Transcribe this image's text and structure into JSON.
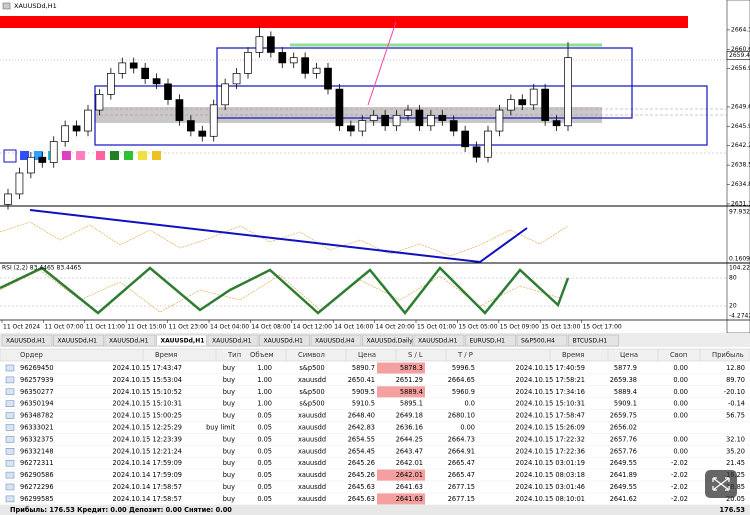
{
  "chart": {
    "title": "XAUUSDd,H1",
    "price_range": [
      2630.7,
      2670.0
    ],
    "price_ticks": [
      2664.3,
      2660.6,
      2656.9,
      2649.6,
      2645.9,
      2642.2,
      2638.5,
      2634.8,
      2631.1
    ],
    "price_tick_labels": [
      "2664.30",
      "2660.60",
      "2656.90",
      "2649.60",
      "2645.90",
      "2642.20",
      "2638.50",
      "2634.80",
      "2631.10"
    ],
    "current_price": {
      "value": 2659.44,
      "label": "2659.44"
    },
    "candles": [
      [
        2631,
        2634,
        2630,
        2633
      ],
      [
        2633,
        2638,
        2632,
        2637
      ],
      [
        2637,
        2641,
        2636,
        2640
      ],
      [
        2640,
        2641,
        2638,
        2639
      ],
      [
        2639,
        2644,
        2638,
        2643
      ],
      [
        2643,
        2647,
        2642,
        2646
      ],
      [
        2646,
        2647,
        2644,
        2645
      ],
      [
        2645,
        2650,
        2644,
        2649
      ],
      [
        2649,
        2653,
        2648,
        2652
      ],
      [
        2652,
        2657,
        2651,
        2656
      ],
      [
        2656,
        2659,
        2655,
        2658
      ],
      [
        2658,
        2659,
        2656,
        2657
      ],
      [
        2657,
        2658,
        2654,
        2655
      ],
      [
        2655,
        2656,
        2653,
        2654
      ],
      [
        2654,
        2655,
        2650,
        2651
      ],
      [
        2651,
        2652,
        2646,
        2647
      ],
      [
        2647,
        2648,
        2644,
        2645
      ],
      [
        2645,
        2646,
        2643,
        2644
      ],
      [
        2644,
        2651,
        2643,
        2650
      ],
      [
        2650,
        2655,
        2649,
        2654
      ],
      [
        2654,
        2657,
        2653,
        2656
      ],
      [
        2656,
        2661,
        2655,
        2660
      ],
      [
        2660,
        2665,
        2659,
        2663
      ],
      [
        2663,
        2664,
        2659,
        2660
      ],
      [
        2660,
        2661,
        2657,
        2658
      ],
      [
        2658,
        2660,
        2657,
        2659
      ],
      [
        2659,
        2660,
        2655,
        2656
      ],
      [
        2656,
        2658,
        2655,
        2657
      ],
      [
        2657,
        2658,
        2652,
        2653
      ],
      [
        2653,
        2654,
        2645,
        2646
      ],
      [
        2646,
        2647,
        2644,
        2645
      ],
      [
        2645,
        2648,
        2644,
        2647
      ],
      [
        2647,
        2649,
        2646,
        2648
      ],
      [
        2648,
        2649,
        2645,
        2646
      ],
      [
        2646,
        2649,
        2645,
        2648
      ],
      [
        2648,
        2650,
        2647,
        2649
      ],
      [
        2649,
        2650,
        2645,
        2646
      ],
      [
        2646,
        2649,
        2645,
        2648
      ],
      [
        2648,
        2649,
        2646,
        2647
      ],
      [
        2647,
        2648,
        2644,
        2645
      ],
      [
        2645,
        2646,
        2641,
        2642
      ],
      [
        2642,
        2643,
        2639,
        2640
      ],
      [
        2640,
        2646,
        2639,
        2645
      ],
      [
        2645,
        2650,
        2644,
        2649
      ],
      [
        2649,
        2652,
        2648,
        2651
      ],
      [
        2651,
        2652,
        2649,
        2650
      ],
      [
        2650,
        2654,
        2649,
        2653
      ],
      [
        2653,
        2654,
        2646,
        2647
      ],
      [
        2647,
        2648,
        2645,
        2646
      ],
      [
        2646,
        2662,
        2645,
        2659
      ]
    ],
    "indicator_axis": [
      "97.9327",
      "0.1609"
    ],
    "rsi_label": "RSI (2,2) 83.4465 83.4465",
    "rsi_axis": [
      "104.2238",
      "80",
      "20",
      "-4.2742"
    ],
    "time_labels": [
      "11 Oct 2024",
      "11 Oct 07:00",
      "11 Oct 11:00",
      "11 Oct 15:00",
      "11 Oct 23:00",
      "14 Oct 04:00",
      "14 Oct 08:00",
      "14 Oct 12:00",
      "14 Oct 16:00",
      "14 Oct 20:00",
      "15 Oct 01:00",
      "15 Oct 05:00",
      "15 Oct 09:00",
      "15 Oct 13:00",
      "15 Oct 17:00"
    ]
  },
  "tabs": [
    "XAUUSDd,H1",
    "XAUUSDd,H1",
    "XAUUSDd,H1",
    "XAUUSDd,H1",
    "XAUUSDd,H1",
    "XAUUSDd,H1",
    "XAUUSDd,H4",
    "XAUUSDd,Daily",
    "XAUUSDd,H1",
    "EURUSD,H1",
    "S&P500,H4",
    "BTCUSD,H1"
  ],
  "active_tab": 3,
  "table": {
    "columns": [
      "Ордер",
      "Время",
      "Тип",
      "Объем",
      "Символ",
      "Цена",
      "S / L",
      "T / P",
      "Время",
      "Цена",
      "Своп",
      "Прибыль"
    ],
    "rows": [
      [
        "96269450",
        "2024.10.15 17:43:47",
        "buy",
        "1.00",
        "s&p500",
        "5890.7",
        "5878.3",
        "5996.5",
        "2024.10.15 17:40:59",
        "5877.9",
        "0.00",
        "12.80"
      ],
      [
        "96257939",
        "2024.10.15 15:53:04",
        "buy",
        "1.00",
        "xauusdd",
        "2650.41",
        "2651.29",
        "2664.65",
        "2024.10.15 17:58:21",
        "2659.38",
        "0.00",
        "89.70"
      ],
      [
        "96350277",
        "2024.10.15 15:10:52",
        "buy",
        "1.00",
        "s&p500",
        "5909.5",
        "5889.4",
        "5960.9",
        "2024.10.15 17:34:16",
        "5889.4",
        "0.00",
        "-20.10"
      ],
      [
        "96350194",
        "2024.10.15 15:10:31",
        "buy",
        "1.00",
        "s&p500",
        "5910.5",
        "5895.1",
        "0.0",
        "2024.10.15 15:10:31",
        "5909.1",
        "0.00",
        "-0.14"
      ],
      [
        "96348782",
        "2024.10.15 15:00:25",
        "buy",
        "0.05",
        "xauusdd",
        "2648.40",
        "2649.18",
        "2680.10",
        "2024.10.15 17:58:47",
        "2659.75",
        "0.00",
        "56.75"
      ],
      [
        "96333021",
        "2024.10.15 12:25:29",
        "buy limit",
        "0.05",
        "xauusdd",
        "2642.83",
        "2636.16",
        "0.00",
        "2024.10.15 15:26:09",
        "2656.02",
        null,
        null
      ],
      [
        "96332375",
        "2024.10.15 12:23:39",
        "buy",
        "0.05",
        "xauusdd",
        "2654.55",
        "2644.25",
        "2664.73",
        "2024.10.15 17:22:32",
        "2657.76",
        "0.00",
        "32.10"
      ],
      [
        "96332148",
        "2024.10.15 12:21:24",
        "buy",
        "0.05",
        "xauusdd",
        "2654.45",
        "2643.47",
        "2664.91",
        "2024.10.15 17:22:36",
        "2657.76",
        "0.00",
        "35.20"
      ],
      [
        "96272311",
        "2024.10.14 17:59:09",
        "buy",
        "0.05",
        "xauusdd",
        "2645.26",
        "2642.01",
        "2665.47",
        "2024.10.15 03:01:19",
        "2649.55",
        "-2.02",
        "21.45"
      ],
      [
        "96290586",
        "2024.10.14 17:59:09",
        "buy",
        "0.05",
        "xauusdd",
        "2645.26",
        "2642.01",
        "2665.47",
        "2024.10.15 08:03:18",
        "2641.89",
        "-2.02",
        "16.25"
      ],
      [
        "96272296",
        "2024.10.14 17:58:57",
        "buy",
        "0.05",
        "xauusdd",
        "2645.63",
        "2641.63",
        "2677.15",
        "2024.10.15 03:01:46",
        "2649.55",
        "-2.02",
        "18.85"
      ],
      [
        "96299585",
        "2024.10.14 17:58:57",
        "buy",
        "0.05",
        "xauusdd",
        "2645.63",
        "2641.63",
        "2677.15",
        "2024.10.15 08:10:01",
        "2641.62",
        "-2.02",
        "20.05"
      ]
    ],
    "sl_highlight_rows": [
      0,
      2,
      9,
      11
    ],
    "sl_highlight_color": "#f4a0a0"
  },
  "status": {
    "summary": "Прибыль: 176.53  Кредит: 0.00  Депозит: 0.00  Снятие: 0.00",
    "total": "176.53"
  }
}
